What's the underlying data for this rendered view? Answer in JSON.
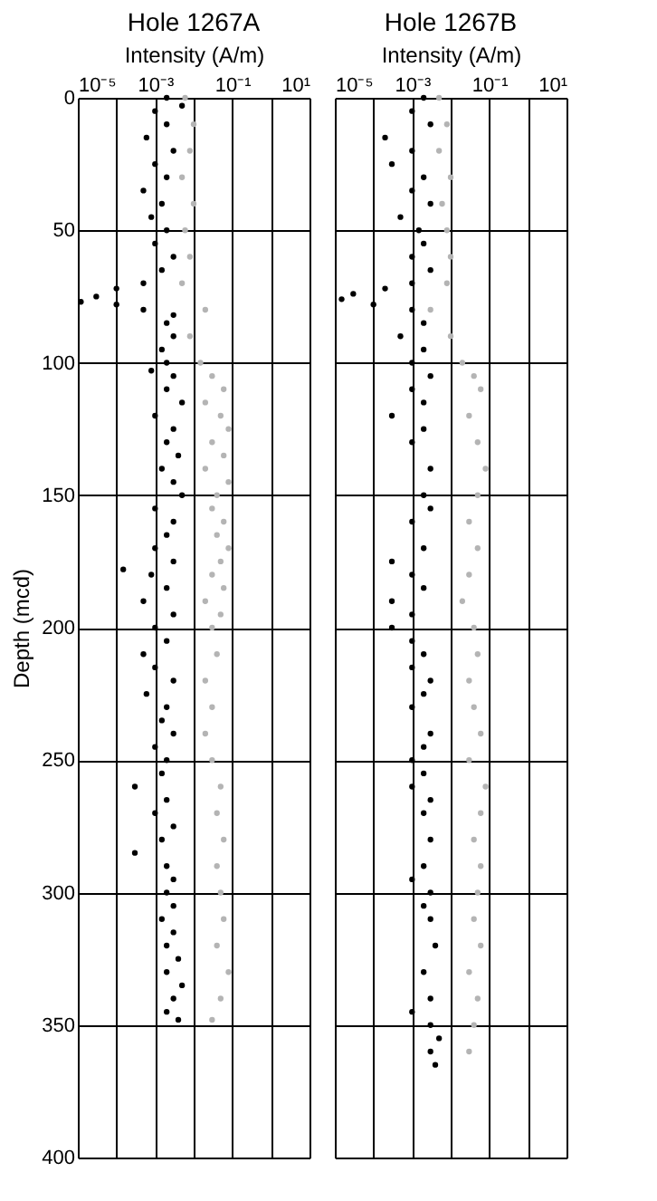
{
  "chart_data": [
    {
      "type": "scatter",
      "title": "Hole 1267A",
      "xlabel": "Intensity (A/m)",
      "ylabel": "Depth (mcd)",
      "log": "x",
      "xlim": [
        1e-05,
        10
      ],
      "xticks": [
        {
          "value": 1e-05,
          "label": "10⁻⁵"
        },
        {
          "value": 0.0001,
          "label": null
        },
        {
          "value": 0.001,
          "label": "10⁻³"
        },
        {
          "value": 0.01,
          "label": null
        },
        {
          "value": 0.1,
          "label": "10⁻¹"
        },
        {
          "value": 1,
          "label": null
        },
        {
          "value": 10,
          "label": "10¹"
        }
      ],
      "ylim": [
        400,
        0
      ],
      "yticks": [
        0,
        50,
        100,
        150,
        200,
        250,
        300,
        350,
        400
      ],
      "grid": true,
      "marker": "circle",
      "series": [
        {
          "color": "#b4b4b4",
          "x": [
            0.006,
            0.01,
            0.008,
            0.005,
            0.01,
            0.006,
            0.008,
            0.005,
            0.02,
            0.008,
            0.015,
            0.03,
            0.06,
            0.02,
            0.05,
            0.08,
            0.03,
            0.06,
            0.02,
            0.08,
            0.04,
            0.03,
            0.06,
            0.04,
            0.08,
            0.05,
            0.03,
            0.06,
            0.02,
            0.05,
            0.03,
            0.04,
            0.02,
            0.03,
            0.02,
            0.03,
            0.05,
            0.04,
            0.06,
            0.04,
            0.05,
            0.06,
            0.04,
            0.08,
            0.05,
            0.03
          ],
          "values": [
            0,
            10,
            20,
            30,
            40,
            50,
            60,
            70,
            80,
            90,
            100,
            105,
            110,
            115,
            120,
            125,
            130,
            135,
            140,
            145,
            150,
            155,
            160,
            165,
            170,
            175,
            180,
            185,
            190,
            195,
            200,
            210,
            220,
            230,
            240,
            250,
            260,
            270,
            280,
            290,
            300,
            310,
            320,
            330,
            340,
            348
          ]
        },
        {
          "color": "#000000",
          "x": [
            0.002,
            0.005,
            0.001,
            0.002,
            0.0006,
            0.003,
            0.001,
            0.002,
            0.0005,
            0.0015,
            0.0008,
            0.002,
            0.001,
            0.003,
            0.0015,
            0.0005,
            0.0001,
            3e-05,
            1.2e-05,
            0.0001,
            0.0005,
            0.003,
            0.002,
            0.003,
            0.0015,
            0.002,
            0.0008,
            0.003,
            0.002,
            0.005,
            0.001,
            0.003,
            0.002,
            0.004,
            0.0015,
            0.003,
            0.005,
            0.001,
            0.003,
            0.002,
            0.001,
            0.003,
            0.00015,
            0.0008,
            0.002,
            0.0005,
            0.003,
            0.001,
            0.002,
            0.0005,
            0.001,
            0.003,
            0.0006,
            0.002,
            0.0015,
            0.003,
            0.001,
            0.002,
            0.0015,
            0.0003,
            0.002,
            0.001,
            0.003,
            0.0015,
            0.0003,
            0.002,
            0.003,
            0.002,
            0.003,
            0.0015,
            0.003,
            0.002,
            0.004,
            0.002,
            0.005,
            0.003,
            0.002,
            0.004
          ],
          "values": [
            0,
            3,
            5,
            10,
            15,
            20,
            25,
            30,
            35,
            40,
            45,
            50,
            55,
            60,
            65,
            70,
            72,
            75,
            77,
            78,
            80,
            82,
            85,
            90,
            95,
            100,
            103,
            105,
            110,
            115,
            120,
            125,
            130,
            135,
            140,
            145,
            150,
            155,
            160,
            165,
            170,
            175,
            178,
            180,
            185,
            190,
            195,
            200,
            205,
            210,
            215,
            220,
            225,
            230,
            235,
            240,
            245,
            250,
            255,
            260,
            265,
            270,
            275,
            280,
            285,
            290,
            295,
            300,
            305,
            310,
            315,
            320,
            325,
            330,
            335,
            340,
            345,
            348
          ]
        }
      ]
    },
    {
      "type": "scatter",
      "title": "Hole  1267B",
      "xlabel": "Intensity (A/m)",
      "log": "x",
      "xlim": [
        1e-05,
        10
      ],
      "xticks": [
        {
          "value": 1e-05,
          "label": "10⁻⁵"
        },
        {
          "value": 0.0001,
          "label": null
        },
        {
          "value": 0.001,
          "label": "10⁻³"
        },
        {
          "value": 0.01,
          "label": null
        },
        {
          "value": 0.1,
          "label": "10⁻¹"
        },
        {
          "value": 1,
          "label": null
        },
        {
          "value": 10,
          "label": "10¹"
        }
      ],
      "ylim": [
        400,
        0
      ],
      "yticks": [
        0,
        50,
        100,
        150,
        200,
        250,
        300,
        350,
        400
      ],
      "tick_labels": "x",
      "grid": true,
      "marker": "circle",
      "series": [
        {
          "color": "#b4b4b4",
          "x": [
            0.005,
            0.008,
            0.005,
            0.01,
            0.006,
            0.008,
            0.01,
            0.008,
            0.003,
            0.01,
            0.02,
            0.04,
            0.06,
            0.03,
            0.05,
            0.08,
            0.05,
            0.03,
            0.05,
            0.03,
            0.02,
            0.04,
            0.05,
            0.03,
            0.04,
            0.06,
            0.03,
            0.08,
            0.06,
            0.04,
            0.06,
            0.05,
            0.04,
            0.06,
            0.03,
            0.05,
            0.04,
            0.03
          ],
          "values": [
            0,
            10,
            20,
            30,
            40,
            50,
            60,
            70,
            80,
            90,
            100,
            105,
            110,
            120,
            130,
            140,
            150,
            160,
            170,
            180,
            190,
            200,
            210,
            220,
            230,
            240,
            250,
            260,
            270,
            280,
            290,
            300,
            310,
            320,
            330,
            340,
            350,
            360
          ]
        },
        {
          "color": "#000000",
          "x": [
            0.002,
            0.001,
            0.003,
            0.0002,
            0.001,
            0.0003,
            0.002,
            0.001,
            0.003,
            0.0005,
            0.0015,
            0.002,
            0.001,
            0.003,
            0.001,
            0.0002,
            3e-05,
            1.5e-05,
            0.0001,
            0.001,
            0.002,
            0.0005,
            0.002,
            0.001,
            0.003,
            0.001,
            0.002,
            0.0003,
            0.002,
            0.001,
            0.003,
            0.002,
            0.003,
            0.001,
            0.002,
            0.0003,
            0.001,
            0.002,
            0.0003,
            0.001,
            0.0003,
            0.001,
            0.002,
            0.001,
            0.003,
            0.002,
            0.001,
            0.003,
            0.002,
            0.001,
            0.002,
            0.001,
            0.003,
            0.002,
            0.003,
            0.002,
            0.001,
            0.003,
            0.002,
            0.003,
            0.004,
            0.002,
            0.003,
            0.001,
            0.003,
            0.005,
            0.003,
            0.004
          ],
          "values": [
            0,
            5,
            10,
            15,
            20,
            25,
            30,
            35,
            40,
            45,
            50,
            55,
            60,
            65,
            70,
            72,
            74,
            76,
            78,
            80,
            85,
            90,
            95,
            100,
            105,
            110,
            115,
            120,
            125,
            130,
            140,
            150,
            155,
            160,
            170,
            175,
            180,
            185,
            190,
            195,
            200,
            205,
            210,
            215,
            220,
            225,
            230,
            240,
            245,
            250,
            255,
            260,
            265,
            270,
            280,
            290,
            295,
            300,
            305,
            310,
            320,
            330,
            340,
            345,
            350,
            355,
            360,
            365
          ]
        }
      ]
    }
  ]
}
